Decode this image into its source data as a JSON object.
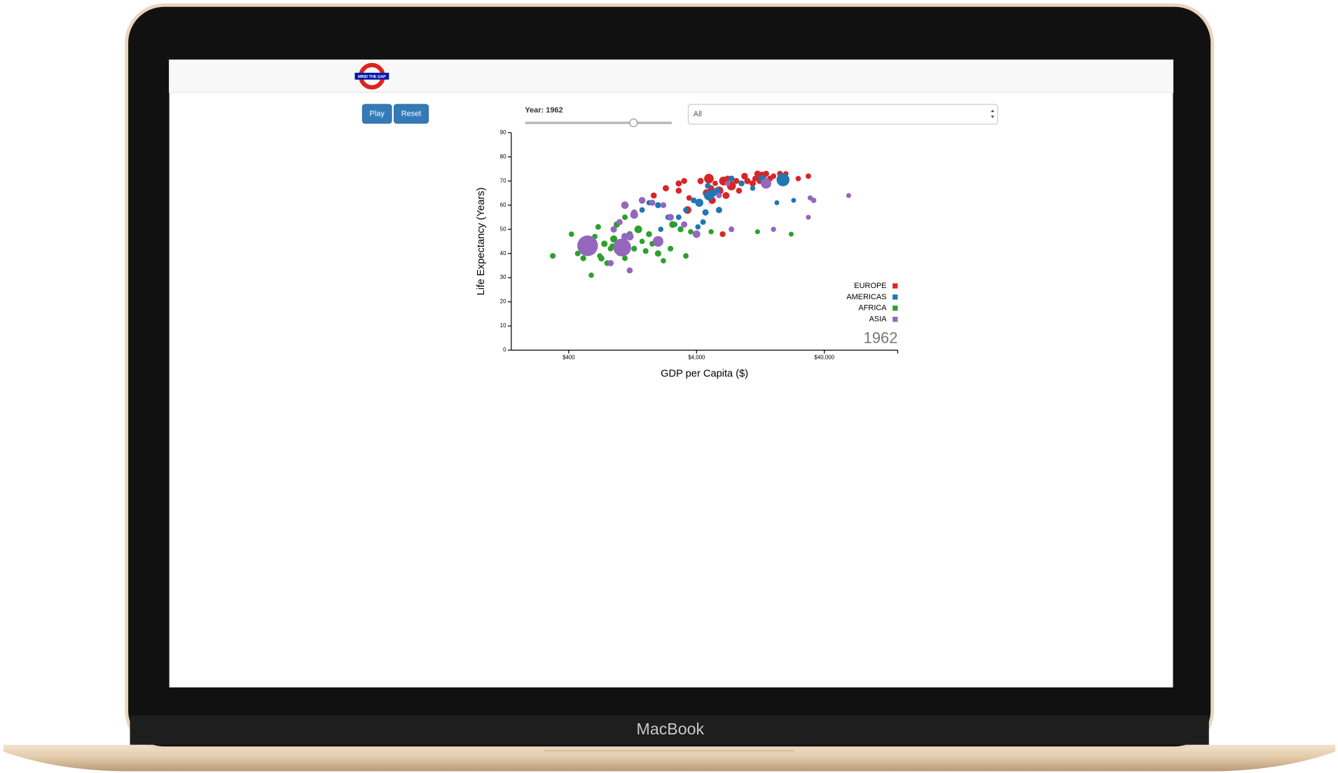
{
  "header": {
    "logo_text": "MIND THE GAP"
  },
  "controls": {
    "play": "Play",
    "reset": "Reset",
    "year_label": "Year: 1962",
    "select": "All"
  },
  "device_label": "MacBook",
  "chart_data": {
    "type": "scatter",
    "x_label": "GDP per Capita ($)",
    "y_label": "Life Expectancy (Years)",
    "annotation": "1962",
    "x_scale": "log",
    "xlim": [
      142,
      150000
    ],
    "ylim": [
      0,
      90
    ],
    "xticks": [
      {
        "value": 400,
        "label": "$400"
      },
      {
        "value": 4000,
        "label": "$4,000"
      },
      {
        "value": 40000,
        "label": "$40,000"
      }
    ],
    "yticks": [
      0,
      10,
      20,
      30,
      40,
      50,
      60,
      70,
      80,
      90
    ],
    "legend": "bottom-right",
    "series": [
      {
        "name": "EUROPE",
        "color": "#d62728",
        "x": [
          1850,
          2300,
          2900,
          3200,
          2900,
          3500,
          3400,
          4300,
          5000,
          5600,
          5200,
          6000,
          6500,
          7000,
          7500,
          8200,
          9000,
          10000,
          11000,
          11500,
          12500,
          13000,
          14000,
          15000,
          16000,
          18000,
          19000,
          20000,
          12000,
          9500,
          6800,
          5300,
          4800,
          6400,
          25000,
          30000,
          8600
        ],
        "values": [
          64,
          67,
          69,
          70,
          66,
          63,
          58,
          70,
          71,
          69,
          67,
          66,
          70,
          71,
          68,
          70,
          69,
          70,
          69,
          71,
          70,
          72,
          73,
          71,
          72,
          73,
          72,
          73,
          73,
          72,
          64,
          62,
          65,
          48,
          71,
          72,
          66
        ],
        "size": [
          8,
          10,
          9,
          7,
          8,
          4,
          28,
          10,
          72,
          3,
          9,
          46,
          52,
          8,
          55,
          7,
          4,
          10,
          11,
          5,
          9,
          53,
          8,
          7,
          4,
          6,
          4,
          3,
          12,
          14,
          18,
          22,
          30,
          6,
          3,
          4,
          7
        ]
      },
      {
        "name": "AMERICAS",
        "color": "#1f77b4",
        "x": [
          19000,
          1500,
          1700,
          2000,
          2400,
          2700,
          3300,
          3800,
          4200,
          5000,
          5400,
          5800,
          4700,
          4500,
          6000,
          4100,
          3000,
          7500,
          11000,
          14000,
          17000,
          23000,
          9000,
          2900,
          4900,
          2100,
          13000
        ],
        "values": [
          70.5,
          58,
          61,
          60,
          55,
          52,
          58,
          62,
          61,
          64,
          65,
          66,
          57,
          53,
          58,
          51,
          50,
          71,
          67,
          68,
          61,
          62,
          69,
          55,
          68,
          50,
          71
        ],
        "size": [
          186,
          4,
          3,
          8,
          5,
          3,
          4,
          6,
          38,
          76,
          21,
          16,
          11,
          4,
          10,
          3,
          5,
          8,
          2,
          3,
          1,
          1,
          7,
          4,
          6,
          3,
          18
        ]
      },
      {
        "name": "AFRICA",
        "color": "#2ca02c",
        "x": [
          300,
          420,
          470,
          520,
          560,
          600,
          640,
          680,
          720,
          760,
          800,
          850,
          900,
          950,
          1000,
          1050,
          1100,
          1200,
          1300,
          1400,
          1500,
          1600,
          1700,
          1800,
          2000,
          2200,
          2500,
          2600,
          3000,
          3300,
          3600,
          5200,
          12000,
          22000,
          1100,
          700,
          880
        ],
        "values": [
          39,
          48,
          40,
          38,
          42,
          31,
          47,
          51,
          38,
          44,
          36,
          42,
          46,
          52,
          40,
          44,
          38,
          48,
          42,
          50,
          45,
          41,
          48,
          44,
          40,
          37,
          42,
          52,
          50,
          39,
          49,
          49,
          49,
          48,
          55,
          39,
          43
        ],
        "size": [
          5,
          3,
          4,
          6,
          7,
          3,
          4,
          5,
          9,
          12,
          6,
          4,
          22,
          10,
          3,
          5,
          4,
          8,
          6,
          28,
          3,
          5,
          7,
          4,
          11,
          3,
          5,
          17,
          6,
          4,
          3,
          2,
          1,
          1,
          4,
          3,
          6
        ]
      },
      {
        "name": "ASIA",
        "color": "#9467bd",
        "x": [
          562,
          1047,
          900,
          1000,
          1100,
          1200,
          1300,
          1500,
          1800,
          2000,
          2500,
          3200,
          4000,
          6000,
          7500,
          16000,
          1000,
          850,
          1200,
          1300,
          30000,
          33000,
          31000,
          62000,
          7000,
          14000,
          1100,
          2200
        ],
        "values": [
          43.2,
          42.5,
          50,
          53,
          60,
          47,
          57,
          62,
          61,
          45,
          55,
          52,
          48,
          64,
          50,
          50,
          44,
          36,
          33,
          56,
          55,
          62,
          63,
          64,
          69,
          69,
          47,
          60
        ],
        "size": [
          665,
          460,
          12,
          9,
          26,
          30,
          8,
          15,
          9,
          100,
          17,
          11,
          27,
          4,
          5,
          2,
          52,
          10,
          8,
          33,
          1,
          3,
          2,
          1,
          2,
          95,
          22,
          6
        ]
      }
    ]
  }
}
